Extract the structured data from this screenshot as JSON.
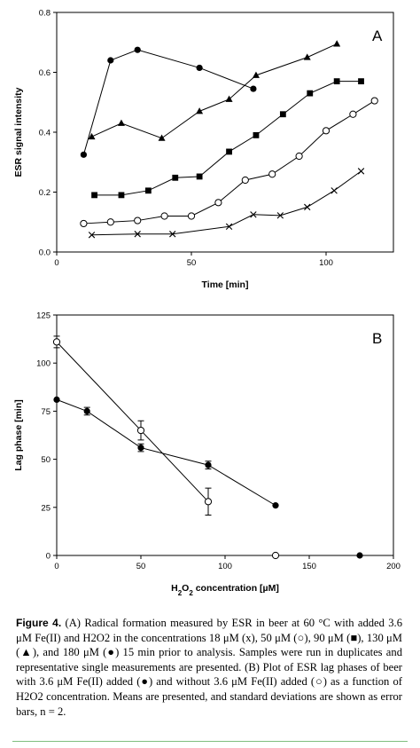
{
  "chart_data": [
    {
      "type": "line",
      "panel_label": "A",
      "xlabel": "Time [min]",
      "ylabel": "ESR signal intensity",
      "xlim": [
        0,
        125
      ],
      "ylim": [
        0.0,
        0.8
      ],
      "x_ticks": [
        0,
        50,
        100
      ],
      "y_ticks": [
        0.0,
        0.2,
        0.4,
        0.6,
        0.8
      ],
      "x_tick_labels": [
        "0",
        "50",
        "100"
      ],
      "y_tick_labels": [
        "0.0",
        "0.2",
        "0.4",
        "0.6",
        "0.8"
      ],
      "grid": false,
      "series": [
        {
          "marker": "circle-filled",
          "x": [
            10,
            20,
            30,
            53,
            73
          ],
          "y": [
            0.325,
            0.64,
            0.675,
            0.615,
            0.545
          ]
        },
        {
          "marker": "triangle-filled",
          "x": [
            13,
            24,
            39,
            53,
            64,
            74,
            93,
            104
          ],
          "y": [
            0.385,
            0.43,
            0.38,
            0.47,
            0.51,
            0.59,
            0.65,
            0.695
          ]
        },
        {
          "marker": "square-filled",
          "x": [
            14,
            24,
            34,
            44,
            53,
            64,
            74,
            84,
            94,
            104,
            113
          ],
          "y": [
            0.19,
            0.19,
            0.205,
            0.248,
            0.252,
            0.335,
            0.39,
            0.46,
            0.53,
            0.57,
            0.57
          ]
        },
        {
          "marker": "circle-open",
          "x": [
            10,
            20,
            30,
            40,
            50,
            60,
            70,
            80,
            90,
            100,
            110,
            118
          ],
          "y": [
            0.095,
            0.1,
            0.105,
            0.12,
            0.12,
            0.165,
            0.24,
            0.26,
            0.32,
            0.405,
            0.46,
            0.505
          ]
        },
        {
          "marker": "x",
          "x": [
            13,
            30,
            43,
            64,
            73,
            83,
            93,
            103,
            113
          ],
          "y": [
            0.057,
            0.06,
            0.06,
            0.085,
            0.125,
            0.122,
            0.15,
            0.205,
            0.27
          ]
        }
      ]
    },
    {
      "type": "line",
      "panel_label": "B",
      "xlabel": "H2O2 concentration [µM]",
      "ylabel": "Lag phase [min]",
      "xlim": [
        0,
        200
      ],
      "ylim": [
        0,
        125
      ],
      "x_ticks": [
        0,
        50,
        100,
        150,
        200
      ],
      "y_ticks": [
        0,
        25,
        50,
        75,
        100,
        125
      ],
      "x_tick_labels": [
        "0",
        "50",
        "100",
        "150",
        "200"
      ],
      "y_tick_labels": [
        "0",
        "25",
        "50",
        "75",
        "100",
        "125"
      ],
      "grid": false,
      "series": [
        {
          "marker": "circle-filled",
          "x": [
            0,
            18,
            50,
            90,
            130
          ],
          "y": [
            81,
            75,
            56,
            47,
            26
          ],
          "error": [
            0,
            2,
            2,
            2,
            0
          ],
          "extra_point": {
            "x": 180,
            "y": 0
          }
        },
        {
          "marker": "circle-open",
          "x": [
            0,
            50,
            90
          ],
          "y": [
            111,
            65,
            28
          ],
          "error": [
            3,
            5,
            7
          ],
          "extra_point": {
            "x": 130,
            "y": 0
          }
        }
      ]
    }
  ],
  "caption": {
    "label": "Figure 4.",
    "text": "(A) Radical formation measured by ESR in beer at 60 °C with added 3.6 μM Fe(II) and H2O2 in the concentrations 18 μM (x), 50 μM (○), 90 μM (■), 130 μM (▲), and 180 μM (●) 15 min prior to analysis. Samples were run in duplicates and representative single measurements are presented. (B) Plot of ESR lag phases of beer with 3.6 μM Fe(II) added (●) and without 3.6 μM Fe(II) added (○) as a function of H2O2 concentration. Means are presented, and standard deviations are shown as error bars, n = 2."
  }
}
